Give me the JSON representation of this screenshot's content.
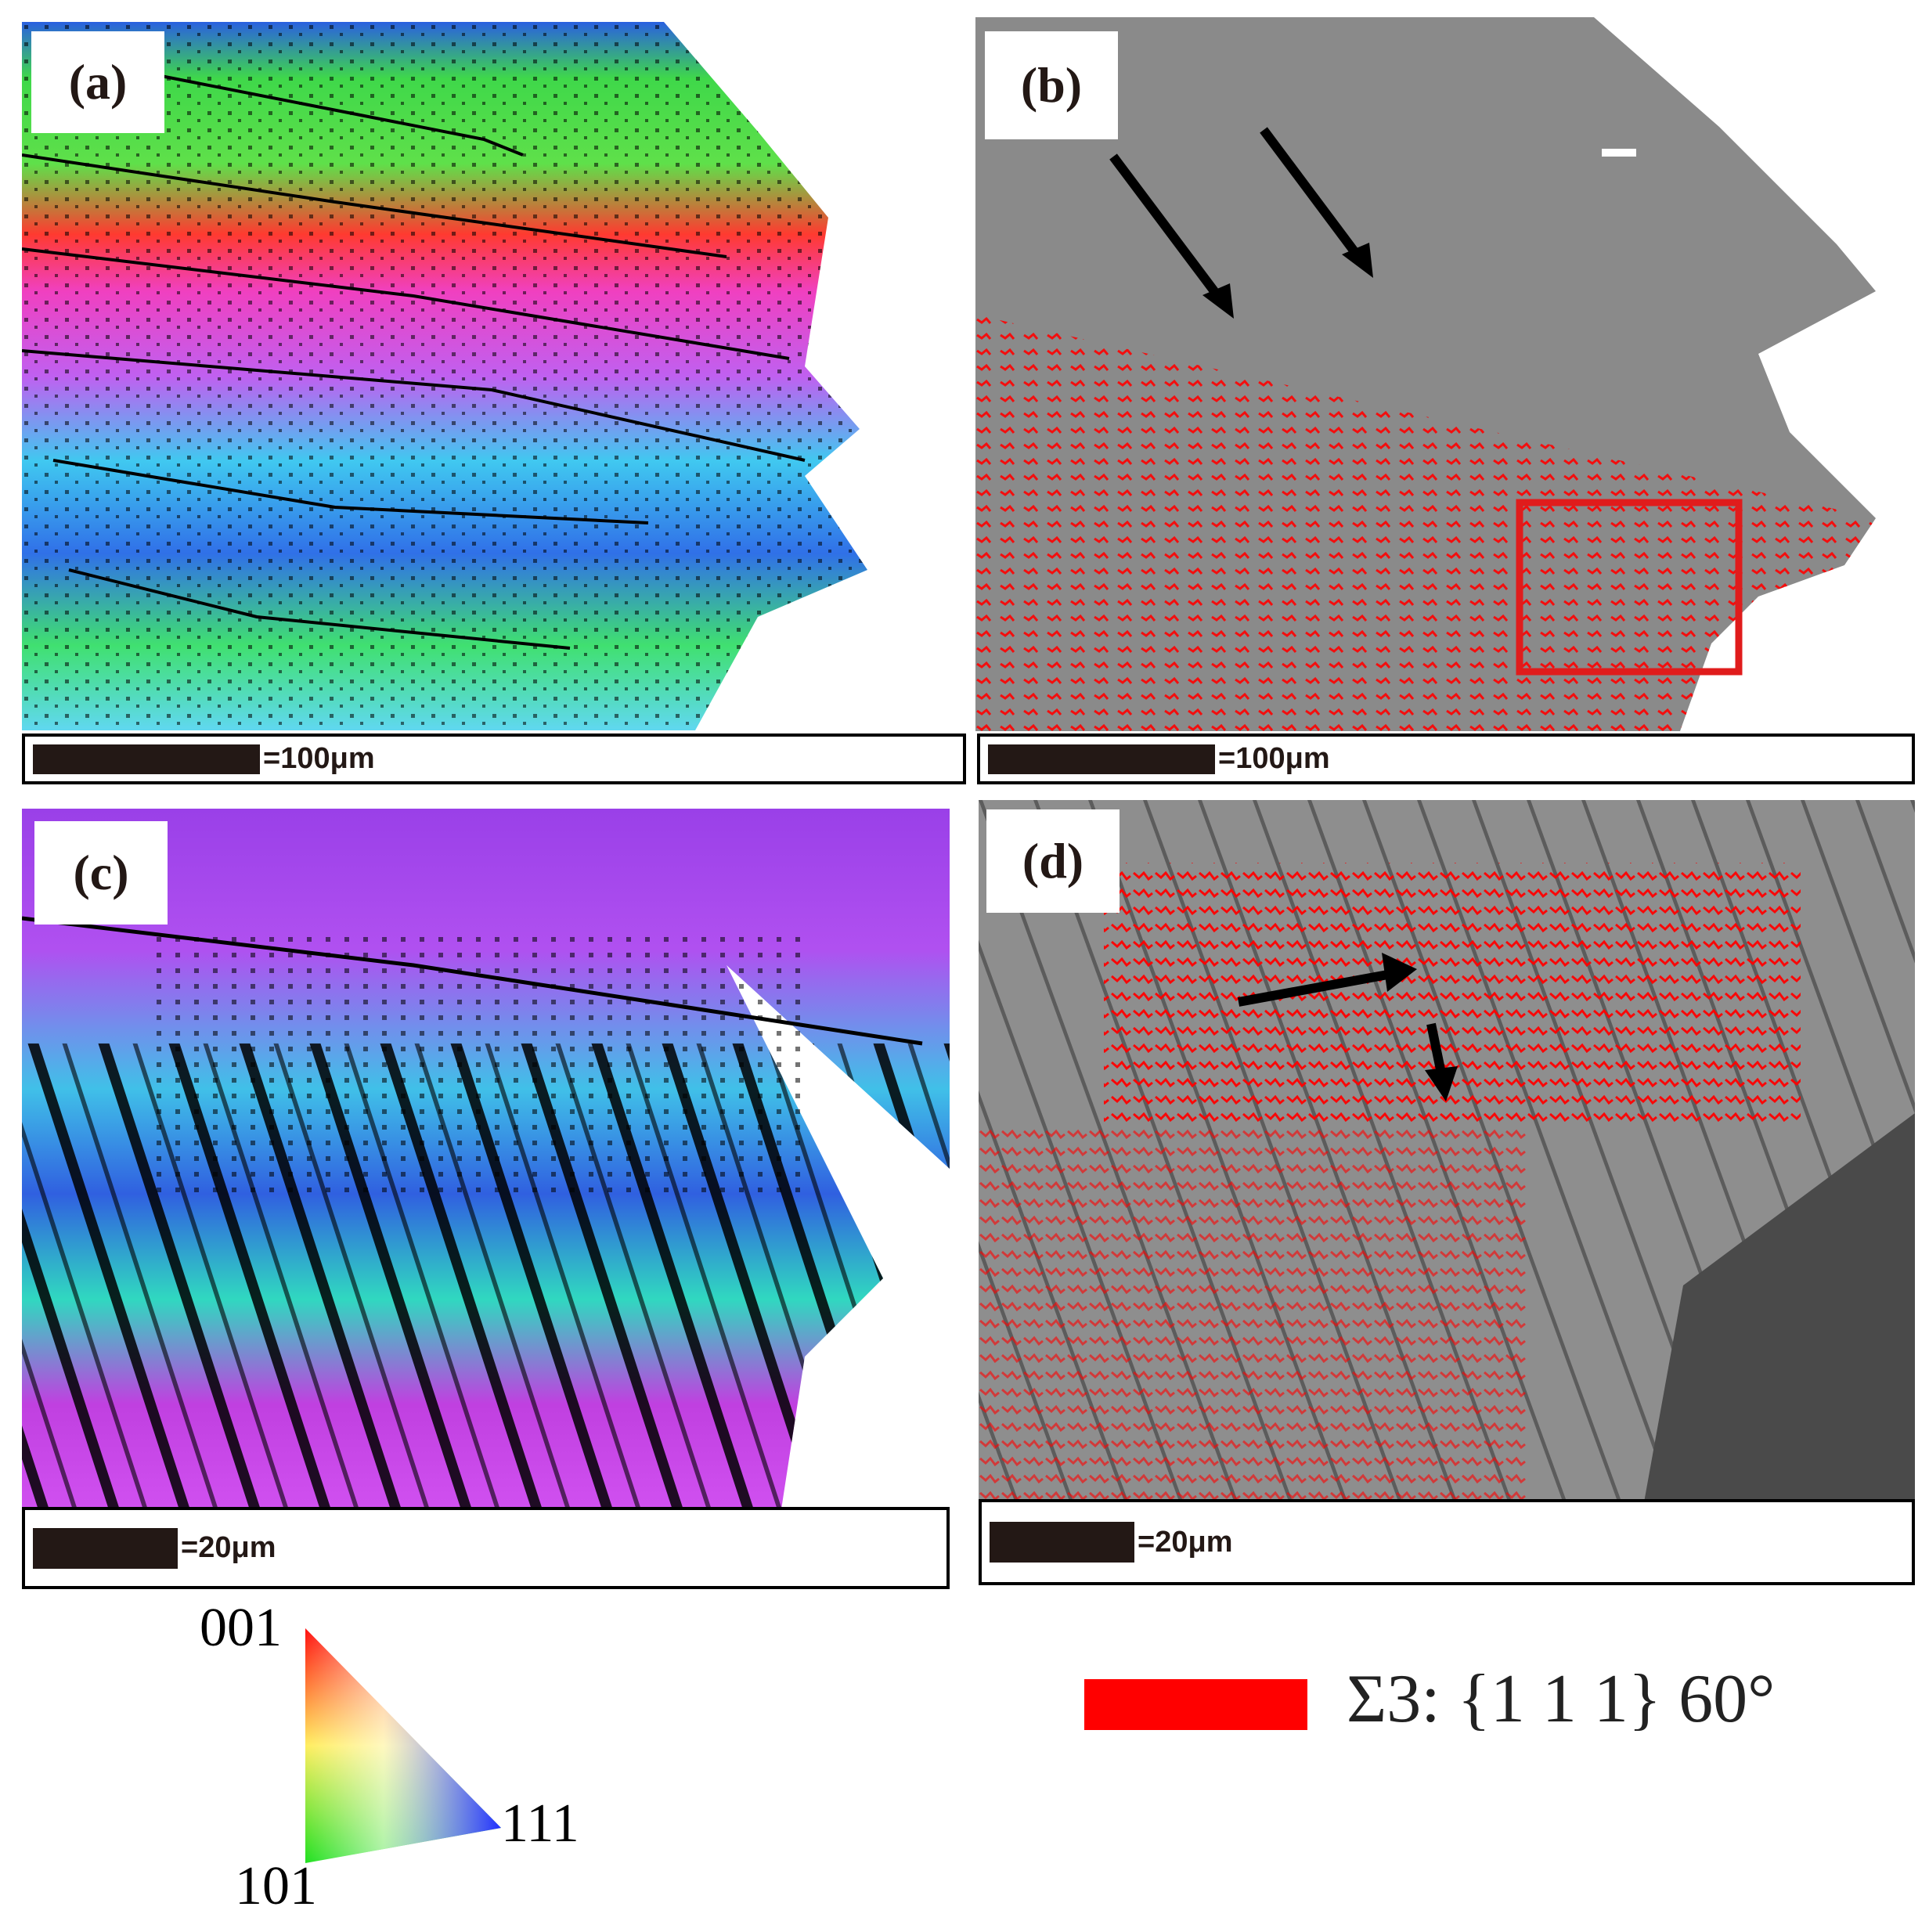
{
  "panels": {
    "a": {
      "label": "(a)",
      "scale": "=100μm"
    },
    "b": {
      "label": "(b)",
      "scale": "=100μm"
    },
    "c": {
      "label": "(c)",
      "scale": "=20μm"
    },
    "d": {
      "label": "(d)",
      "scale": "=20μm"
    }
  },
  "ipf_legend": {
    "top": "001",
    "right": "111",
    "bottom": "101"
  },
  "boundary_legend": {
    "text": "Σ3: {1 1 1} 60°",
    "color": "#ff0000"
  },
  "colors": {
    "sigma3": "#ff0000",
    "highlight_box": "#e01c1c",
    "arrow": "#000000"
  }
}
